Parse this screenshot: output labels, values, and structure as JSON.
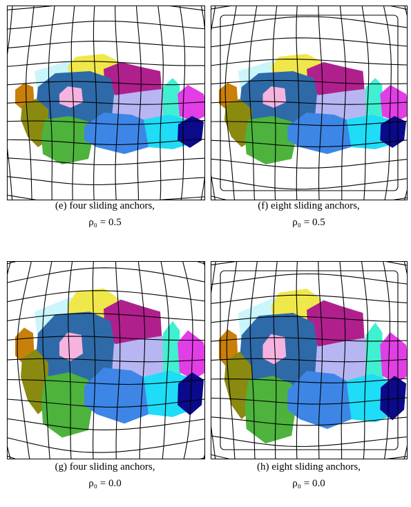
{
  "panels": [
    {
      "caption": "(e) four sliding anchors,",
      "formula": "ρ₀ = 0.5"
    },
    {
      "caption": "(f) eight sliding anchors,",
      "formula": "ρ₀ = 0.5"
    },
    {
      "caption": "(g) four sliding anchors,",
      "formula": "ρ₀ = 0.0"
    },
    {
      "caption": "(h) eight sliding anchors,",
      "formula": "ρ₀ = 0.0"
    }
  ]
}
